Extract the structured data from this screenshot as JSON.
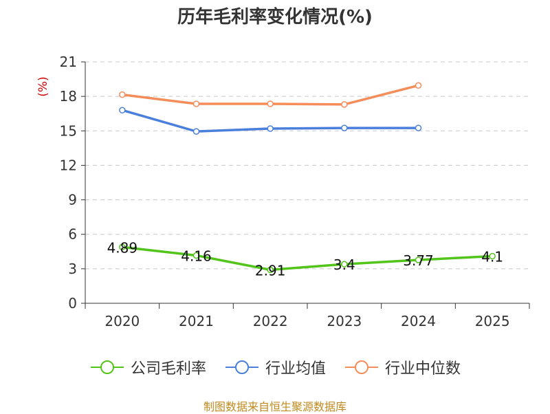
{
  "chart_data": {
    "type": "line",
    "title": "历年毛利率变化情况(%)",
    "ylabel": "(%)",
    "categories": [
      "2020",
      "2021",
      "2022",
      "2023",
      "2024",
      "2025"
    ],
    "ylim": [
      0,
      21
    ],
    "yticks": [
      0,
      3,
      6,
      9,
      12,
      15,
      18,
      21
    ],
    "grid": true,
    "legend_position": "bottom",
    "series": [
      {
        "name": "公司毛利率",
        "color": "#52c41a",
        "show_labels": true,
        "values": [
          4.89,
          4.16,
          2.91,
          3.4,
          3.77,
          4.1
        ],
        "labels": [
          "4.89",
          "4.16",
          "2.91",
          "3.4",
          "3.77",
          "4.1"
        ]
      },
      {
        "name": "行业均值",
        "color": "#4a7fdc",
        "show_labels": false,
        "values": [
          16.8,
          14.95,
          15.2,
          15.25,
          15.25,
          null
        ]
      },
      {
        "name": "行业中位数",
        "color": "#f58d5a",
        "show_labels": false,
        "values": [
          18.15,
          17.35,
          17.35,
          17.3,
          18.95,
          null
        ]
      }
    ]
  },
  "source_note": "制图数据来自恒生聚源数据库"
}
